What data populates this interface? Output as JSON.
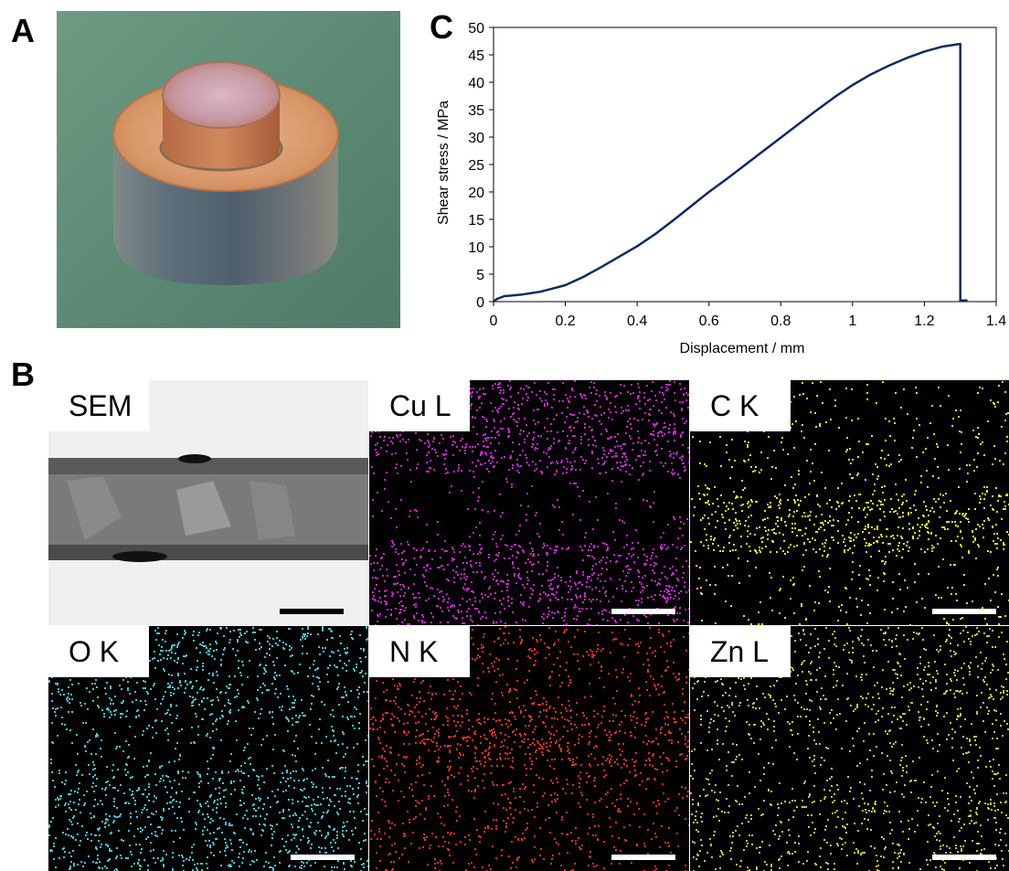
{
  "panels": {
    "a": "A",
    "b": "B",
    "c": "C"
  },
  "chart_data": {
    "type": "line",
    "title": "",
    "xlabel": "Displacement / mm",
    "ylabel": "Shear stress / MPa",
    "xlim": [
      0,
      1.4
    ],
    "ylim": [
      0,
      50
    ],
    "xticks": [
      "0",
      "0.2",
      "0.4",
      "0.6",
      "0.8",
      "1",
      "1.2",
      "1.4"
    ],
    "yticks": [
      "0",
      "5",
      "10",
      "15",
      "20",
      "25",
      "30",
      "35",
      "40",
      "45",
      "50"
    ],
    "grid": false,
    "line_color": "#0d2a66",
    "series": [
      {
        "x": [
          0,
          0.01,
          0.03,
          0.05,
          0.08,
          0.1,
          0.13,
          0.16,
          0.2,
          0.25,
          0.3,
          0.35,
          0.4,
          0.45,
          0.5,
          0.55,
          0.6,
          0.65,
          0.7,
          0.75,
          0.8,
          0.85,
          0.9,
          0.95,
          1.0,
          1.05,
          1.1,
          1.15,
          1.2,
          1.25,
          1.3,
          1.3,
          1.3,
          1.32
        ],
        "y": [
          0,
          0.5,
          1.0,
          1.1,
          1.3,
          1.5,
          1.8,
          2.3,
          3.0,
          4.5,
          6.3,
          8.2,
          10.1,
          12.3,
          14.8,
          17.4,
          20.0,
          22.4,
          24.9,
          27.4,
          29.9,
          32.4,
          34.9,
          37.3,
          39.5,
          41.4,
          43.0,
          44.4,
          45.6,
          46.5,
          47.0,
          5.0,
          0.2,
          0.2
        ]
      }
    ]
  },
  "eds_maps": [
    {
      "label": "SEM",
      "color": "#c8c8c8",
      "scale_bar_color": "#000000"
    },
    {
      "label": "Cu L",
      "color": "#d020d8",
      "scale_bar_color": "#ffffff"
    },
    {
      "label": "C K",
      "color": "#e8e820",
      "scale_bar_color": "#ffffff"
    },
    {
      "label": "O K",
      "color": "#40c8d8",
      "scale_bar_color": "#ffffff"
    },
    {
      "label": "N K",
      "color": "#f03018",
      "scale_bar_color": "#ffffff"
    },
    {
      "label": "Zn L",
      "color": "#c8c830",
      "scale_bar_color": "#ffffff"
    }
  ]
}
